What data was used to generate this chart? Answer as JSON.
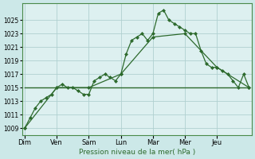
{
  "background_color": "#cce8e8",
  "plot_bg_color": "#ddf0f0",
  "grid_color": "#b0d0d0",
  "line_color": "#2d6a2d",
  "marker_color": "#2d6a2d",
  "xlabel": "Pression niveau de la mer( hPa )",
  "ylim": [
    1008,
    1027.5
  ],
  "yticks": [
    1009,
    1011,
    1013,
    1015,
    1017,
    1019,
    1021,
    1023,
    1025
  ],
  "day_labels": [
    "Dim",
    "Ven",
    "Sam",
    "Lun",
    "Mar",
    "Mer",
    "Jeu"
  ],
  "day_positions": [
    0,
    6,
    12,
    18,
    24,
    30,
    36
  ],
  "x_max": 42,
  "series1_x": [
    0,
    1,
    2,
    3,
    4,
    5,
    6,
    7,
    8,
    9,
    10,
    11,
    12,
    13,
    14,
    15,
    16,
    17,
    18,
    19,
    20,
    21,
    22,
    23,
    24,
    25,
    26,
    27,
    28,
    29,
    30,
    31,
    32,
    33,
    34,
    35,
    36,
    37,
    38,
    39,
    40,
    41,
    42
  ],
  "series1_y": [
    1009,
    1010.5,
    1012,
    1013,
    1013.5,
    1014,
    1015,
    1015.5,
    1015,
    1015,
    1014.5,
    1014,
    1014,
    1016,
    1016.5,
    1017,
    1016.5,
    1016,
    1017,
    1020,
    1022,
    1022.5,
    1023,
    1022,
    1023,
    1026,
    1026.5,
    1025,
    1024.5,
    1024,
    1023.5,
    1023,
    1023,
    1020.5,
    1018.5,
    1018,
    1018,
    1017.5,
    1017,
    1016,
    1015,
    1017,
    1015
  ],
  "series2_x": [
    0,
    6,
    12,
    18,
    24,
    30,
    36,
    42
  ],
  "series2_y": [
    1009,
    1015,
    1015,
    1017,
    1022.5,
    1023,
    1018,
    1015
  ],
  "series3_x": [
    0,
    18,
    36,
    42
  ],
  "series3_y": [
    1015,
    1015,
    1015,
    1015
  ],
  "spine_color": "#4a8a4a"
}
